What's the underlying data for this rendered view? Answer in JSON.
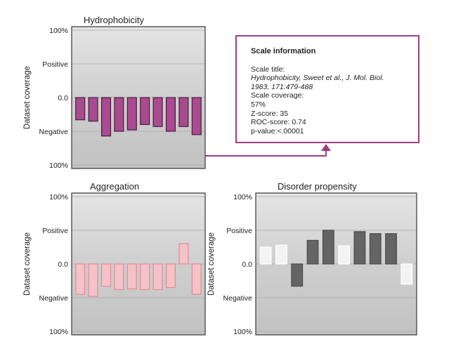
{
  "colors": {
    "hydrophobicity": "#a84b8f",
    "aggregation": "#f5c2c8",
    "disorder_dark": "#646464",
    "disorder_light": "#f3f3f3",
    "info_border": "#9b3f86"
  },
  "y_ticks": [
    "100%",
    "Positive",
    "0.0",
    "Negative",
    "100%"
  ],
  "y_label": "Dataset coverage",
  "chart_data": [
    {
      "type": "bar",
      "title": "Hydrophobicity",
      "ylabel": "Dataset coverage",
      "yticks": [
        "100%",
        "Positive",
        "0.0",
        "Negative",
        "100%"
      ],
      "ylim": [
        -100,
        100
      ],
      "values": [
        -33,
        -35,
        -57,
        -50,
        -48,
        -40,
        -43,
        -50,
        -43,
        -55
      ]
    },
    {
      "type": "bar",
      "title": "Aggregation",
      "ylabel": "Dataset coverage",
      "yticks": [
        "100%",
        "Positive",
        "0.0",
        "Negative",
        "100%"
      ],
      "ylim": [
        -100,
        100
      ],
      "values": [
        -45,
        -48,
        -33,
        -38,
        -37,
        -38,
        -38,
        -35,
        30,
        -45
      ]
    },
    {
      "type": "bar",
      "title": "Disorder propensity",
      "ylabel": "Dataset coverage",
      "yticks": [
        "100%",
        "Positive",
        "0.0",
        "Negative",
        "100%"
      ],
      "ylim": [
        -100,
        100
      ],
      "values": [
        25,
        28,
        -33,
        35,
        50,
        27,
        48,
        45,
        45,
        -30
      ],
      "bar_shade": [
        "light",
        "light",
        "dark",
        "dark",
        "dark",
        "light",
        "dark",
        "dark",
        "dark",
        "light"
      ]
    }
  ],
  "info_box": {
    "heading": "Scale information",
    "scale_title_label": "Scale title:",
    "scale_title_line1": "Hydrophobicity, Sweet et al., J. Mol. Biol.",
    "scale_title_line2": "1983, 171:479-488",
    "coverage_label": "Scale coverage:",
    "coverage_value": "57%",
    "z_score": "Z-score: 35",
    "roc_score": "ROC-score: 0.74",
    "p_value": "p-value:<.00001"
  }
}
